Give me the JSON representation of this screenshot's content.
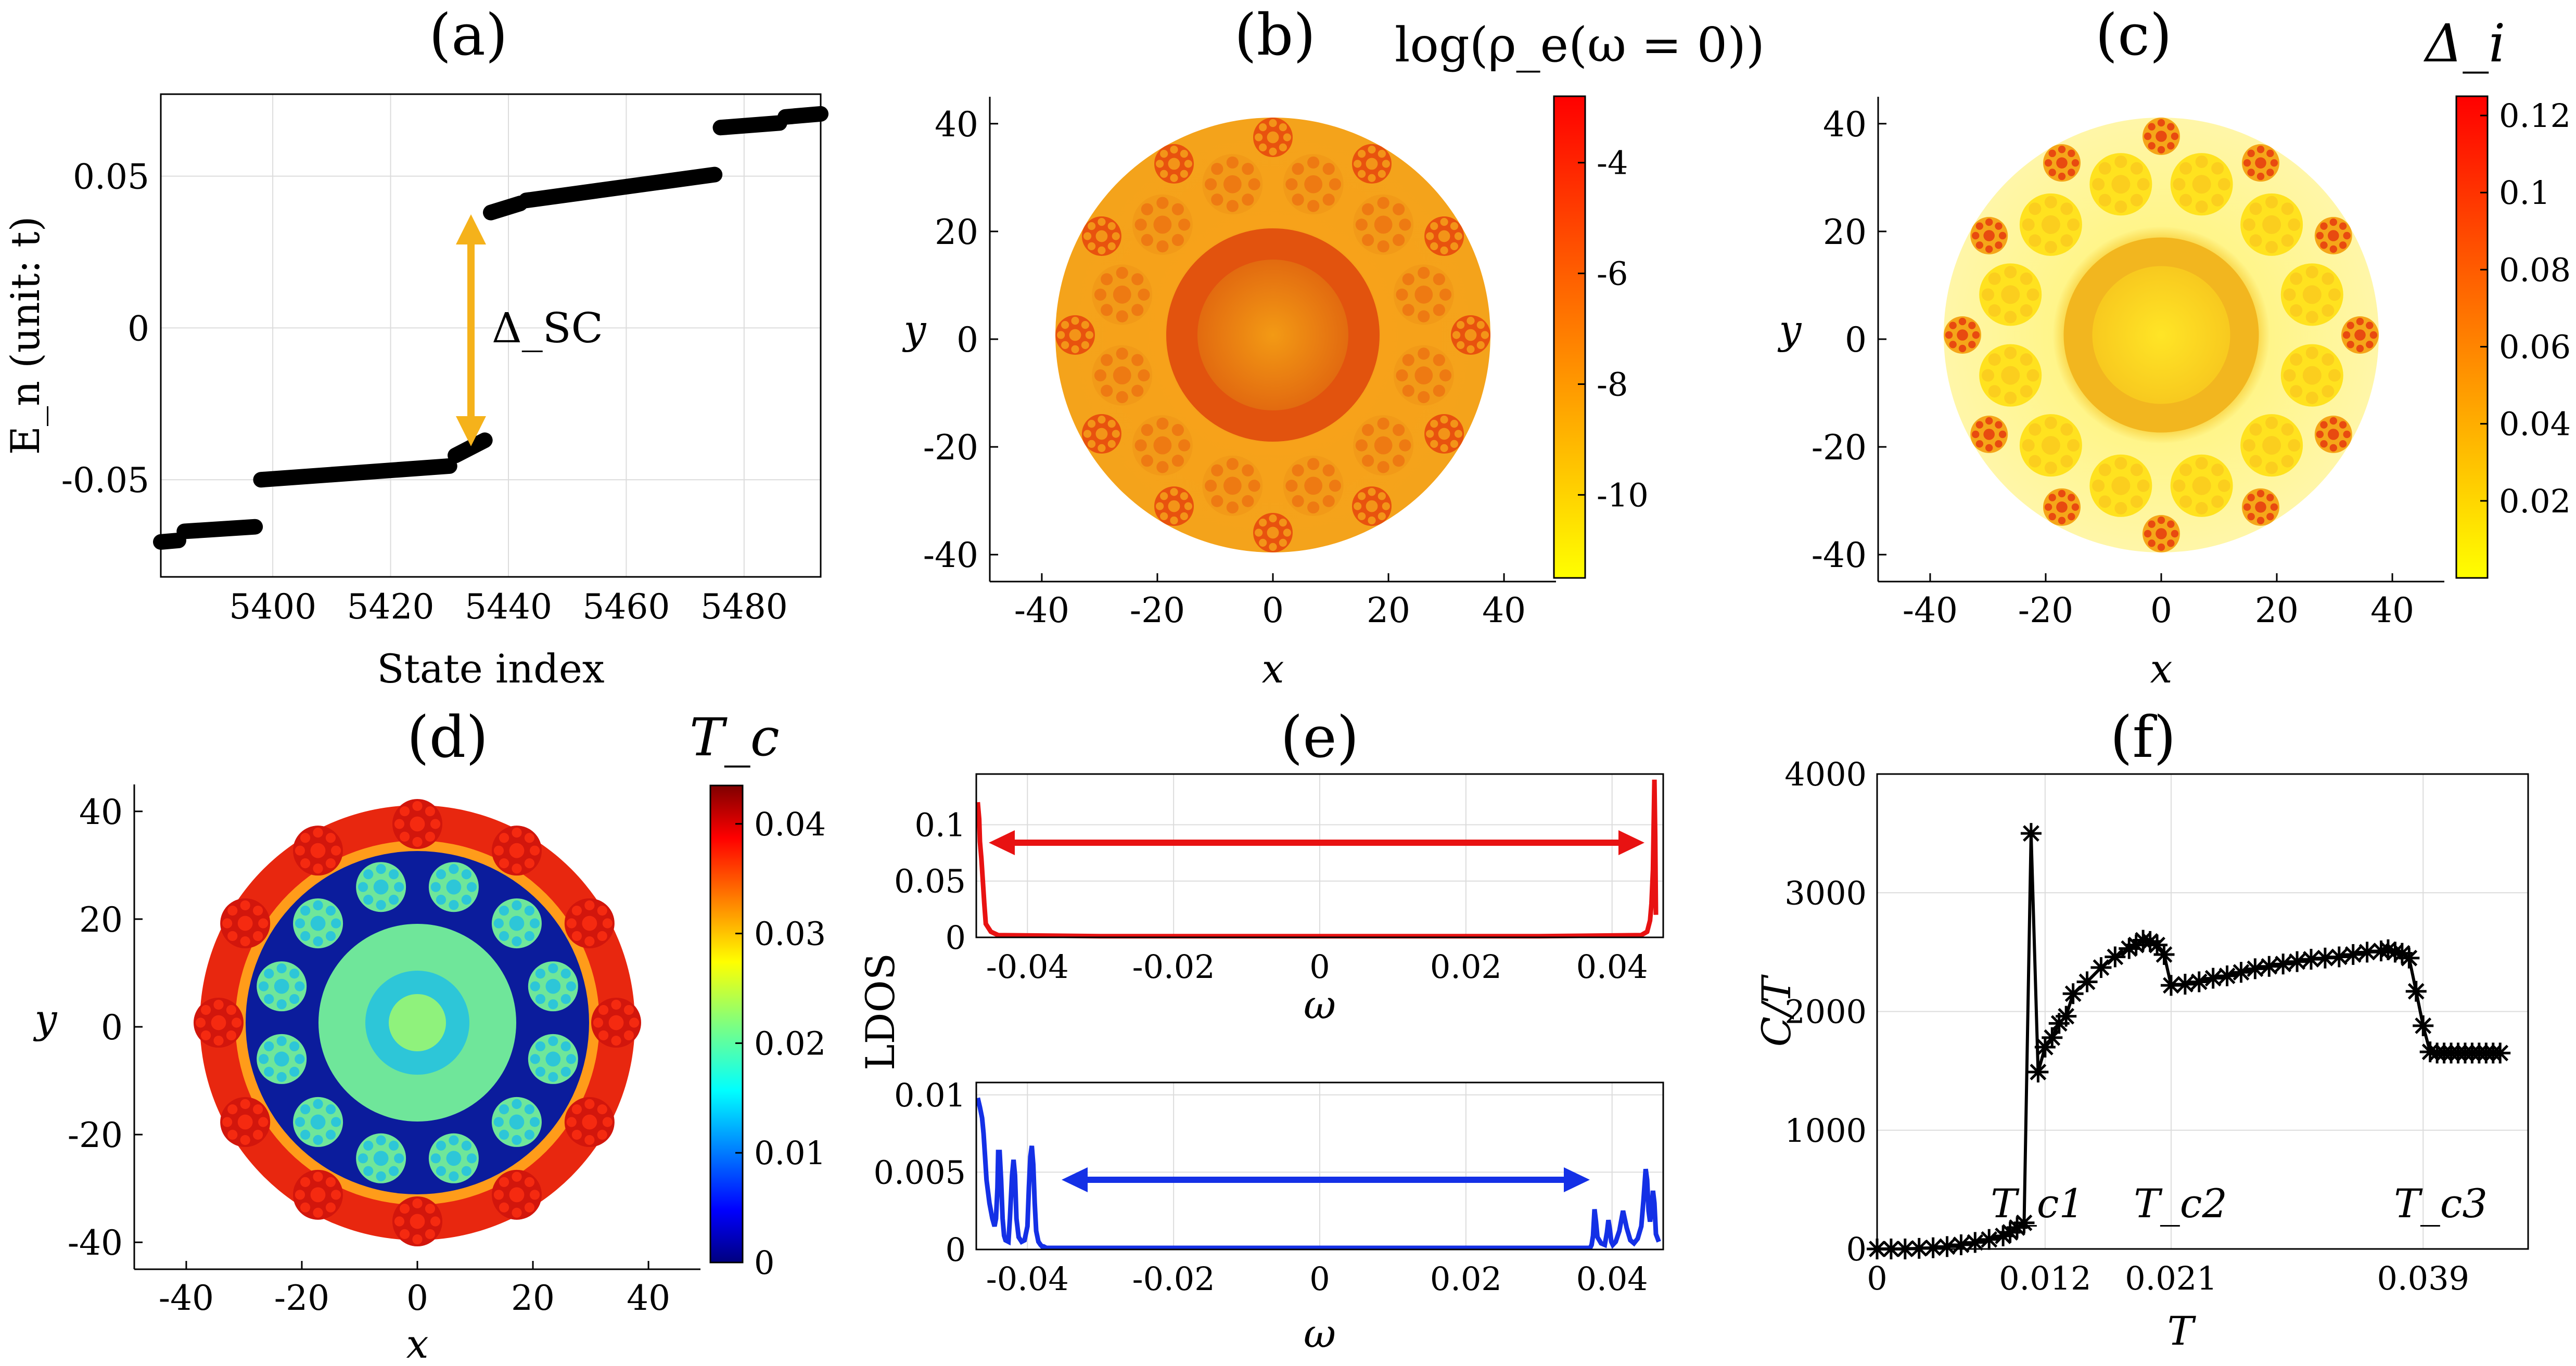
{
  "colors": {
    "black": "#000000",
    "gap_arrow": "#F5B21B",
    "ldos_red": "#E81212",
    "ldos_blue": "#1430E6",
    "grid": "#DCDCDC",
    "autumn_low": "#FFFF00",
    "autumn_high": "#FF0000"
  },
  "chart_data": [
    {
      "panel": "(a)",
      "type": "scatter",
      "title": "(a)",
      "xlabel": "State index",
      "ylabel": "E_n (unit: t)",
      "xlim": [
        5381,
        5493
      ],
      "ylim": [
        -0.082,
        0.077
      ],
      "xticks": [
        "5400",
        "5420",
        "5440",
        "5460",
        "5480"
      ],
      "yticks": [
        "-0.05",
        "0",
        "0.05"
      ],
      "annotation": "Δ_SC",
      "segments": [
        {
          "x": [
            5381,
            5384
          ],
          "y": [
            -0.0705,
            -0.07
          ]
        },
        {
          "x": [
            5385,
            5397
          ],
          "y": [
            -0.067,
            -0.0655
          ]
        },
        {
          "x": [
            5398,
            5430
          ],
          "y": [
            -0.05,
            -0.0455
          ]
        },
        {
          "x": [
            5431,
            5436
          ],
          "y": [
            -0.042,
            -0.037
          ]
        },
        {
          "x": [
            5437,
            5442
          ],
          "y": [
            0.038,
            0.041
          ]
        },
        {
          "x": [
            5443,
            5475
          ],
          "y": [
            0.042,
            0.0505
          ]
        },
        {
          "x": [
            5476,
            5486
          ],
          "y": [
            0.066,
            0.0675
          ]
        },
        {
          "x": [
            5487,
            5493
          ],
          "y": [
            0.0695,
            0.0705
          ]
        }
      ]
    },
    {
      "panel": "(b)",
      "type": "heatmap",
      "title": "(b)",
      "xlabel": "x",
      "ylabel": "y",
      "colorbar_label": "log(ρ_e(ω = 0))",
      "colorbar_ticks": [
        "-4",
        "-6",
        "-8",
        "-10"
      ],
      "colorbar_range": [
        -11.5,
        -2.8
      ],
      "xticks": [
        "-40",
        "-20",
        "0",
        "20",
        "40"
      ],
      "yticks": [
        "-40",
        "-20",
        "0",
        "20",
        "40"
      ],
      "xlim": [
        -49,
        49
      ],
      "ylim": [
        -45,
        45
      ]
    },
    {
      "panel": "(c)",
      "type": "heatmap",
      "title": "(c)",
      "xlabel": "x",
      "ylabel": "y",
      "colorbar_label": "Δ_i",
      "colorbar_ticks": [
        "0.12",
        "0.1",
        "0.08",
        "0.06",
        "0.04",
        "0.02"
      ],
      "colorbar_range": [
        0,
        0.125
      ],
      "xticks": [
        "-40",
        "-20",
        "0",
        "20",
        "40"
      ],
      "yticks": [
        "-40",
        "-20",
        "0",
        "20",
        "40"
      ],
      "xlim": [
        -49,
        49
      ],
      "ylim": [
        -45,
        45
      ]
    },
    {
      "panel": "(d)",
      "type": "heatmap",
      "title": "(d)",
      "xlabel": "x",
      "ylabel": "y",
      "colorbar_label": "T_c",
      "colorbar_ticks": [
        "0.04",
        "0.03",
        "0.02",
        "0.01",
        "0"
      ],
      "colorbar_range": [
        0,
        0.0435
      ],
      "xticks": [
        "-40",
        "-20",
        "0",
        "20",
        "40"
      ],
      "yticks": [
        "-40",
        "-20",
        "0",
        "20",
        "40"
      ],
      "xlim": [
        -49,
        49
      ],
      "ylim": [
        -45,
        45
      ]
    },
    {
      "panel": "(e)",
      "type": "line",
      "title": "(e)",
      "ylabel": "LDOS",
      "subplots": [
        {
          "xlabel": "ω",
          "xlim": [
            -0.047,
            0.047
          ],
          "ylim": [
            0,
            0.145
          ],
          "xticks": [
            "-0.04",
            "-0.02",
            "0",
            "0.02",
            "0.04"
          ],
          "yticks": [
            "0",
            "0.05",
            "0.1"
          ],
          "x": [
            -0.0468,
            -0.0466,
            -0.0465,
            -0.0463,
            -0.0461,
            -0.0459,
            -0.0457,
            -0.045,
            -0.044,
            -0.03,
            0,
            0.03,
            0.044,
            0.0448,
            0.0452,
            0.0454,
            0.0456,
            0.0457,
            0.0458,
            0.0459,
            0.046
          ],
          "y": [
            0.12,
            0.105,
            0.085,
            0.07,
            0.05,
            0.03,
            0.012,
            0.005,
            0.002,
            0.001,
            0.001,
            0.001,
            0.002,
            0.005,
            0.015,
            0.03,
            0.06,
            0.1,
            0.14,
            0.09,
            0.02
          ]
        },
        {
          "xlabel": "ω",
          "xlim": [
            -0.047,
            0.047
          ],
          "ylim": [
            0,
            0.0108
          ],
          "xticks": [
            "-0.04",
            "-0.02",
            "0",
            "0.02",
            "0.04"
          ],
          "yticks": [
            "0",
            "0.005",
            "0.01"
          ],
          "x": [
            -0.0468,
            -0.0465,
            -0.0462,
            -0.046,
            -0.0458,
            -0.0456,
            -0.0452,
            -0.0448,
            -0.0445,
            -0.0443,
            -0.0441,
            -0.044,
            -0.0438,
            -0.0436,
            -0.0434,
            -0.0432,
            -0.043,
            -0.0426,
            -0.0424,
            -0.0421,
            -0.0419,
            -0.0417,
            -0.0415,
            -0.0412,
            -0.0408,
            -0.0404,
            -0.04,
            -0.0398,
            -0.0396,
            -0.0394,
            -0.0392,
            -0.039,
            -0.0388,
            -0.0385,
            -0.0382,
            -0.038,
            -0.0378,
            -0.0376,
            -0.0374,
            -0.0372,
            -0.037,
            -0.0365,
            -0.03,
            0,
            0.03,
            0.0365,
            0.037,
            0.0372,
            0.0374,
            0.0376,
            0.0378,
            0.038,
            0.0385,
            0.039,
            0.0393,
            0.0395,
            0.0397,
            0.0399,
            0.0401,
            0.0405,
            0.041,
            0.0415,
            0.042,
            0.0425,
            0.043,
            0.0435,
            0.044,
            0.0443,
            0.0446,
            0.0448,
            0.045,
            0.0452,
            0.0454,
            0.0456,
            0.0458,
            0.046,
            0.0464
          ],
          "y": [
            0.0098,
            0.0092,
            0.0085,
            0.0075,
            0.006,
            0.0045,
            0.003,
            0.002,
            0.0015,
            0.002,
            0.004,
            0.0063,
            0.0063,
            0.0045,
            0.002,
            0.0009,
            0.0006,
            0.0005,
            0.002,
            0.0048,
            0.0058,
            0.0048,
            0.002,
            0.0008,
            0.0005,
            0.0006,
            0.0015,
            0.004,
            0.006,
            0.0067,
            0.0055,
            0.003,
            0.0012,
            0.0005,
            0.0003,
            0.0002,
            0.0002,
            0.00015,
            0.0001,
            0.0001,
            0.0001,
            0.0001,
            0.0001,
            0.0001,
            0.0001,
            0.0001,
            0.0001,
            0.0003,
            0.0009,
            0.0026,
            0.0018,
            0.0008,
            0.0004,
            0.0003,
            0.0011,
            0.0019,
            0.0013,
            0.0005,
            0.0003,
            0.0005,
            0.0012,
            0.0025,
            0.0014,
            0.0006,
            0.0004,
            0.0007,
            0.0015,
            0.0032,
            0.0052,
            0.0045,
            0.0025,
            0.0018,
            0.0025,
            0.0038,
            0.003,
            0.001,
            0.0005
          ]
        }
      ]
    },
    {
      "panel": "(f)",
      "type": "line",
      "title": "(f)",
      "xlabel": "T",
      "ylabel": "C/T",
      "xlim": [
        0,
        0.0465
      ],
      "ylim": [
        0,
        4000
      ],
      "xticks": [
        {
          "v": 0,
          "label": "0"
        },
        {
          "v": 0.012,
          "label": "0.012"
        },
        {
          "v": 0.021,
          "label": "0.021"
        },
        {
          "v": 0.039,
          "label": "0.039"
        }
      ],
      "yticks": [
        "0",
        "1000",
        "2000",
        "3000",
        "4000"
      ],
      "annotations": [
        "T_c1",
        "T_c2",
        "T_c3"
      ],
      "x": [
        0,
        0.001,
        0.002,
        0.003,
        0.004,
        0.005,
        0.006,
        0.007,
        0.008,
        0.009,
        0.0095,
        0.01,
        0.0105,
        0.011,
        0.0115,
        0.012,
        0.0125,
        0.013,
        0.0135,
        0.014,
        0.015,
        0.016,
        0.017,
        0.018,
        0.0185,
        0.019,
        0.0195,
        0.02,
        0.0205,
        0.021,
        0.022,
        0.023,
        0.024,
        0.025,
        0.026,
        0.027,
        0.028,
        0.029,
        0.03,
        0.031,
        0.032,
        0.033,
        0.034,
        0.035,
        0.036,
        0.0365,
        0.037,
        0.0375,
        0.038,
        0.0385,
        0.039,
        0.0395,
        0.04,
        0.0405,
        0.041,
        0.0415,
        0.042,
        0.0425,
        0.043,
        0.0435,
        0.044,
        0.0445
      ],
      "y": [
        0,
        0,
        0,
        5,
        10,
        20,
        35,
        55,
        80,
        110,
        140,
        180,
        220,
        3500,
        1490,
        1700,
        1780,
        1900,
        1960,
        2150,
        2250,
        2370,
        2460,
        2530,
        2560,
        2600,
        2590,
        2560,
        2480,
        2220,
        2230,
        2250,
        2280,
        2300,
        2330,
        2360,
        2380,
        2400,
        2420,
        2440,
        2450,
        2460,
        2480,
        2500,
        2510,
        2520,
        2500,
        2490,
        2450,
        2170,
        1880,
        1660,
        1650,
        1650,
        1650,
        1650,
        1650,
        1650,
        1650,
        1650,
        1650,
        1650
      ]
    }
  ]
}
